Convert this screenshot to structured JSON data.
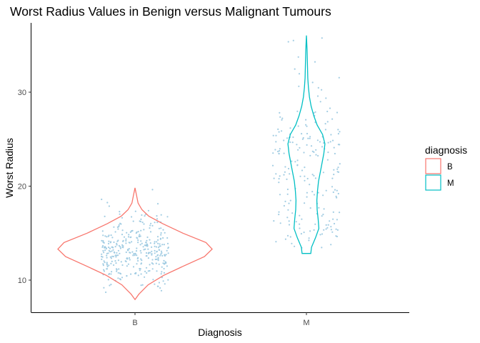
{
  "chart_data": {
    "type": "violin",
    "title": "Worst Radius Values in Benign versus Malignant Tumours",
    "xlabel": "Diagnosis",
    "ylabel": "Worst Radius",
    "categories": [
      "B",
      "M"
    ],
    "ylim": [
      7,
      36.5
    ],
    "yticks": [
      10,
      20,
      30
    ],
    "grid": false,
    "legend": {
      "title": "diagnosis",
      "position": "right",
      "entries": [
        {
          "label": "B",
          "color": "#F8766D"
        },
        {
          "label": "M",
          "color": "#00BFC4"
        }
      ]
    },
    "point_color": "#9ecae1",
    "series": [
      {
        "category": "B",
        "color": "#F8766D",
        "min": 7.93,
        "max": 19.82,
        "density": [
          [
            7.93,
            0.0
          ],
          [
            8.5,
            0.05
          ],
          [
            9.5,
            0.17
          ],
          [
            10.5,
            0.37
          ],
          [
            11.5,
            0.63
          ],
          [
            12.5,
            0.9
          ],
          [
            13.3,
            1.0
          ],
          [
            14.0,
            0.92
          ],
          [
            15.0,
            0.62
          ],
          [
            16.0,
            0.36
          ],
          [
            16.8,
            0.18
          ],
          [
            17.5,
            0.09
          ],
          [
            18.2,
            0.04
          ],
          [
            19.0,
            0.02
          ],
          [
            19.82,
            0.0
          ]
        ],
        "n_points": 357,
        "points_range": [
          8.7,
          19.8
        ]
      },
      {
        "category": "M",
        "color": "#00BFC4",
        "min": 12.84,
        "max": 36.04,
        "density": [
          [
            12.84,
            0.13
          ],
          [
            13.5,
            0.15
          ],
          [
            14.5,
            0.27
          ],
          [
            15.5,
            0.37
          ],
          [
            16.5,
            0.35
          ],
          [
            17.5,
            0.32
          ],
          [
            18.5,
            0.31
          ],
          [
            19.5,
            0.33
          ],
          [
            20.5,
            0.36
          ],
          [
            22.0,
            0.44
          ],
          [
            23.5,
            0.52
          ],
          [
            24.5,
            0.55
          ],
          [
            25.5,
            0.48
          ],
          [
            26.5,
            0.32
          ],
          [
            27.5,
            0.22
          ],
          [
            28.5,
            0.14
          ],
          [
            29.5,
            0.09
          ],
          [
            30.5,
            0.06
          ],
          [
            31.5,
            0.04
          ],
          [
            33.0,
            0.03
          ],
          [
            34.5,
            0.02
          ],
          [
            36.04,
            0.0
          ]
        ],
        "n_points": 212,
        "points_range": [
          13.4,
          36.0
        ]
      }
    ]
  }
}
